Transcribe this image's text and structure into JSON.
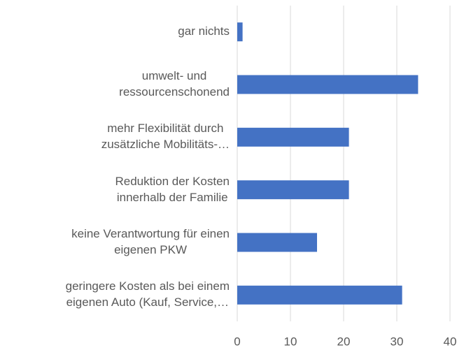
{
  "chart_data": {
    "type": "barh",
    "categories": [
      "gar nichts",
      "umwelt- und\nressourcenschonend",
      "mehr Flexibilität durch\nzusätzliche Mobilitäts-…",
      "Reduktion der Kosten\ninnerhalb der Familie",
      "keine Verantwortung für einen\neigenen PKW",
      "geringere Kosten als bei einem\neigenen Auto (Kauf, Service,…"
    ],
    "values": [
      1,
      34,
      21,
      21,
      15,
      31
    ],
    "color": "#4472c4",
    "xlim": [
      0,
      40
    ],
    "xticks": [
      0,
      10,
      20,
      30,
      40
    ],
    "grid": true
  }
}
